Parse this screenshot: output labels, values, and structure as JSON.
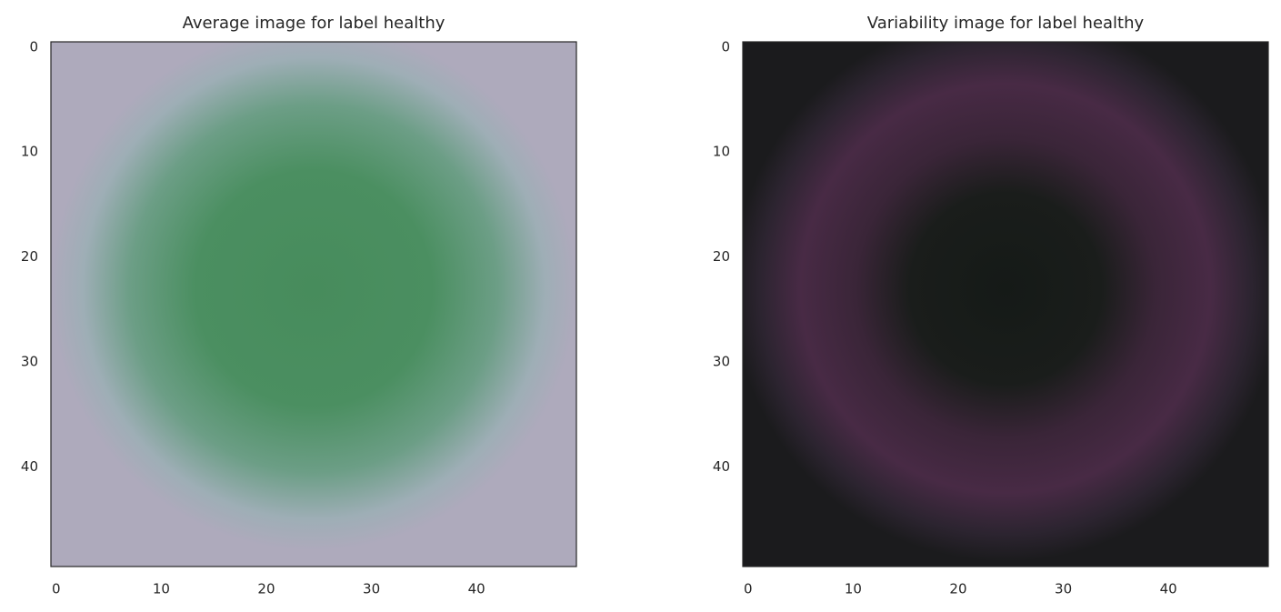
{
  "chart_data": [
    {
      "type": "image",
      "title": "Average image for label healthy",
      "xlim": [
        -0.5,
        49.5
      ],
      "ylim": [
        49.5,
        -0.5
      ],
      "xticks": [
        0,
        10,
        20,
        30,
        40
      ],
      "yticks": [
        0,
        10,
        20,
        30,
        40
      ]
    },
    {
      "type": "image",
      "title": "Variability image for label healthy",
      "xlim": [
        -0.5,
        49.5
      ],
      "ylim": [
        49.5,
        -0.5
      ],
      "xticks": [
        0,
        10,
        20,
        30,
        40
      ],
      "yticks": [
        0,
        10,
        20,
        30,
        40
      ]
    }
  ]
}
